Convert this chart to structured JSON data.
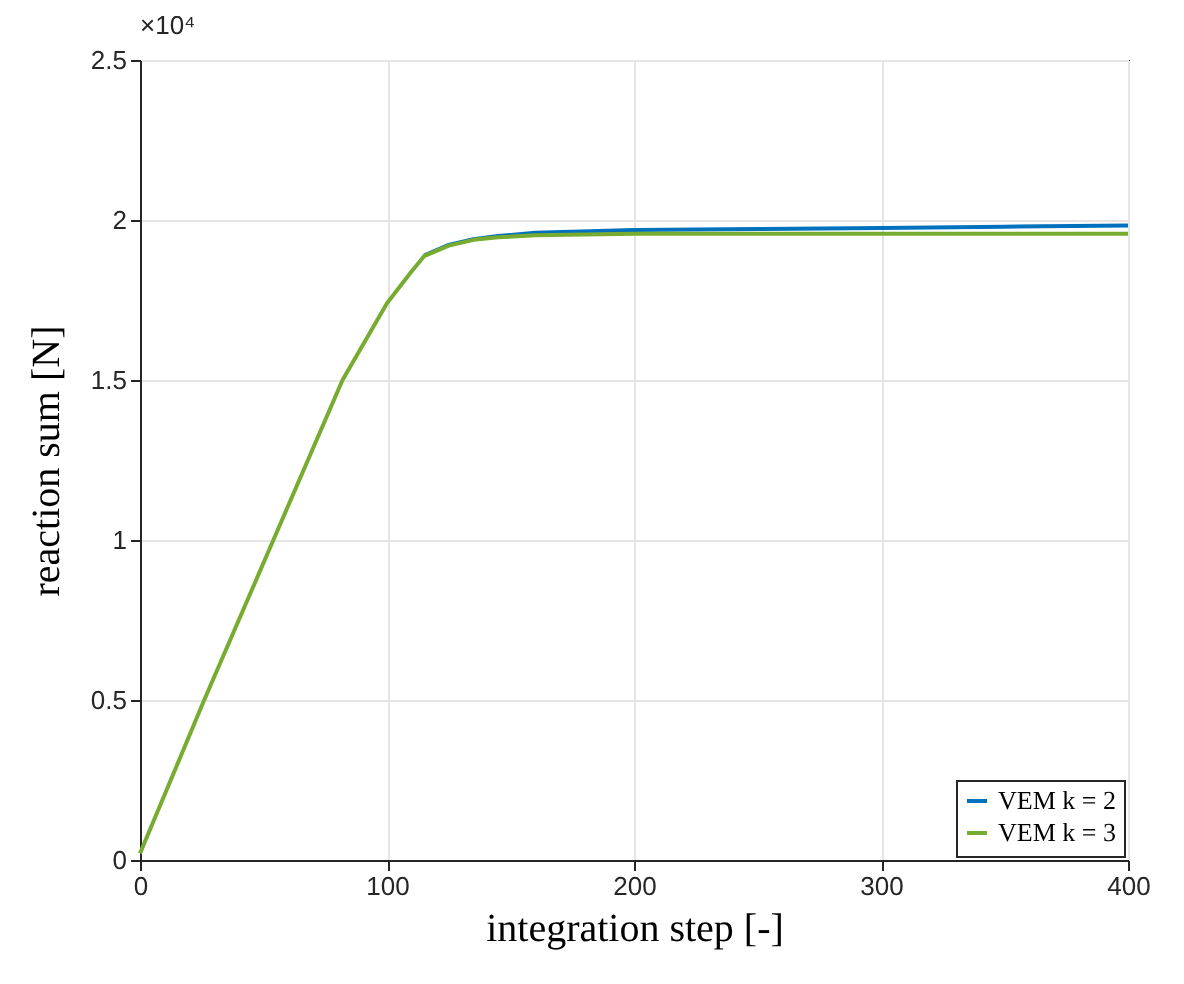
{
  "chart_data": {
    "type": "line",
    "xlabel": "integration step [-]",
    "ylabel": "reaction sum [N]",
    "annotations": [
      "×10⁴"
    ],
    "x": [
      0,
      26,
      54,
      82,
      100,
      110,
      115,
      125,
      135,
      145,
      160,
      200,
      250,
      300,
      350,
      400
    ],
    "series": [
      {
        "name": "VEM k = 2",
        "color": "#0072bd",
        "values": [
          null,
          null,
          null,
          null,
          null,
          null,
          1.889,
          1.922,
          1.94,
          1.95,
          1.96,
          1.969,
          1.972,
          1.975,
          1.979,
          1.983
        ]
      },
      {
        "name": "VEM k = 3",
        "color": "#77ac30",
        "values": [
          0.02,
          0.5,
          1.0,
          1.5,
          1.74,
          1.84,
          1.887,
          1.92,
          1.938,
          1.946,
          1.952,
          1.957,
          1.957,
          1.957,
          1.957,
          1.957
        ]
      }
    ],
    "xlim": [
      0,
      400
    ],
    "xticks": [
      0,
      100,
      200,
      300,
      400
    ],
    "ylim": [
      0,
      2.5
    ],
    "yticks": [
      {
        "value": 0,
        "label": "0"
      },
      0.5,
      {
        "value": 1,
        "label": "1"
      },
      1.5,
      {
        "value": 2,
        "label": "2"
      },
      2.5
    ],
    "grid": true,
    "legend": "bottom right",
    "marker": "none",
    "line_style": "solid"
  }
}
